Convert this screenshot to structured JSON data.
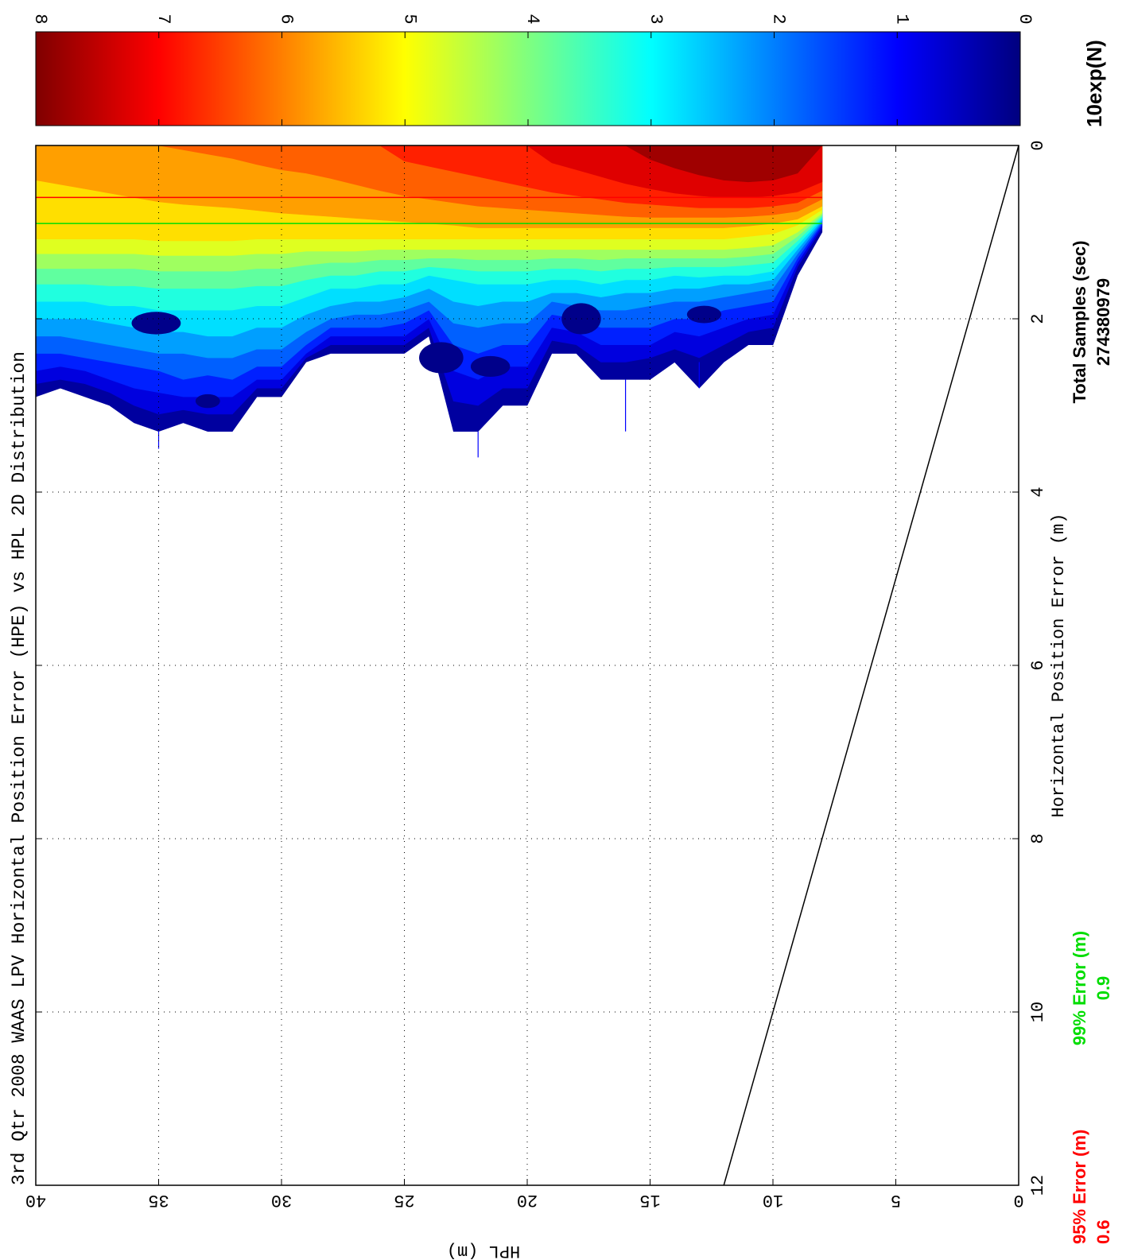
{
  "chart_data": {
    "type": "heatmap",
    "title": "3rd Qtr 2008 WAAS LPV Horizontal Position Error (HPE) vs HPL 2D Distribution",
    "xlabel": "Horizontal Position Error (m)",
    "ylabel": "HPL (m)",
    "xlim": [
      0,
      12
    ],
    "ylim": [
      0,
      40
    ],
    "x_ticks": [
      "0",
      "2",
      "4",
      "6",
      "8",
      "10",
      "12"
    ],
    "y_ticks": [
      "0",
      "5",
      "10",
      "15",
      "20",
      "25",
      "30",
      "35",
      "40"
    ],
    "grid": true,
    "colorbar": {
      "label": "10exp(N)",
      "range": [
        0,
        8
      ],
      "ticks": [
        "0",
        "1",
        "2",
        "3",
        "4",
        "5",
        "6",
        "7",
        "8"
      ]
    },
    "reference_line": {
      "x": [
        0,
        12
      ],
      "y": [
        0,
        12
      ]
    },
    "hpe_95": {
      "label": "95% Error (m)",
      "value": "0.6",
      "color": "#ff0000"
    },
    "hpe_99": {
      "label": "99% Error (m)",
      "value": "0.9",
      "color": "#00dd00"
    },
    "total_samples": {
      "label": "Total Samples (sec)",
      "value": "274380979"
    },
    "hpl_rows": [
      8,
      9,
      10,
      11,
      12,
      13,
      14,
      15,
      16,
      17,
      18,
      19,
      20,
      21,
      22,
      23,
      24,
      25,
      26,
      27,
      28,
      29,
      30,
      31,
      32,
      33,
      34,
      35,
      36,
      37,
      38,
      39,
      40
    ],
    "contour_levels": [
      0,
      0.5,
      1,
      1.5,
      2,
      2.5,
      3,
      3.5,
      4,
      4.5,
      5,
      5.5,
      6,
      6.5,
      7,
      7.5
    ],
    "contours": [
      {
        "level": 0.0,
        "hpe": [
          1.0,
          1.5,
          2.3,
          2.3,
          2.5,
          2.8,
          2.5,
          2.7,
          2.7,
          2.7,
          2.4,
          2.4,
          3.0,
          3.0,
          3.3,
          3.3,
          2.2,
          2.4,
          2.4,
          2.4,
          2.4,
          2.5,
          2.9,
          2.9,
          3.3,
          3.3,
          3.2,
          3.3,
          3.2,
          3.0,
          2.9,
          2.8,
          2.9
        ]
      },
      {
        "level": 0.5,
        "hpe": [
          0.95,
          1.4,
          2.1,
          2.15,
          2.3,
          2.45,
          2.35,
          2.45,
          2.5,
          2.5,
          2.3,
          2.25,
          2.8,
          2.8,
          3.0,
          2.95,
          2.1,
          2.3,
          2.3,
          2.3,
          2.3,
          2.45,
          2.8,
          2.8,
          3.1,
          3.1,
          3.05,
          3.1,
          3.0,
          2.85,
          2.75,
          2.7,
          2.75
        ]
      },
      {
        "level": 1.0,
        "hpe": [
          0.92,
          1.35,
          1.95,
          2.0,
          2.1,
          2.2,
          2.15,
          2.3,
          2.3,
          2.3,
          2.15,
          2.1,
          2.55,
          2.55,
          2.7,
          2.6,
          2.0,
          2.2,
          2.2,
          2.2,
          2.2,
          2.4,
          2.7,
          2.7,
          2.9,
          2.9,
          2.9,
          2.85,
          2.8,
          2.7,
          2.6,
          2.55,
          2.6
        ]
      },
      {
        "level": 1.5,
        "hpe": [
          0.9,
          1.3,
          1.8,
          1.85,
          1.9,
          2.0,
          2.0,
          2.1,
          2.1,
          2.1,
          2.0,
          1.95,
          2.3,
          2.3,
          2.4,
          2.3,
          1.9,
          2.05,
          2.1,
          2.1,
          2.1,
          2.3,
          2.55,
          2.55,
          2.7,
          2.65,
          2.7,
          2.6,
          2.55,
          2.5,
          2.45,
          2.4,
          2.4
        ]
      },
      {
        "level": 2.0,
        "hpe": [
          0.88,
          1.25,
          1.65,
          1.7,
          1.75,
          1.8,
          1.8,
          1.85,
          1.9,
          1.9,
          1.85,
          1.8,
          2.05,
          2.05,
          2.1,
          2.05,
          1.8,
          1.9,
          1.95,
          1.95,
          2.0,
          2.15,
          2.35,
          2.35,
          2.45,
          2.45,
          2.4,
          2.4,
          2.35,
          2.3,
          2.25,
          2.2,
          2.2
        ]
      },
      {
        "level": 2.5,
        "hpe": [
          0.86,
          1.2,
          1.55,
          1.6,
          1.6,
          1.65,
          1.65,
          1.7,
          1.7,
          1.75,
          1.7,
          1.7,
          1.8,
          1.8,
          1.85,
          1.8,
          1.65,
          1.75,
          1.8,
          1.8,
          1.85,
          1.95,
          2.1,
          2.1,
          2.2,
          2.2,
          2.15,
          2.15,
          2.1,
          2.05,
          2.0,
          2.0,
          2.0
        ]
      },
      {
        "level": 3.0,
        "hpe": [
          0.84,
          1.15,
          1.45,
          1.5,
          1.5,
          1.52,
          1.5,
          1.55,
          1.55,
          1.6,
          1.55,
          1.55,
          1.6,
          1.6,
          1.6,
          1.55,
          1.5,
          1.6,
          1.6,
          1.65,
          1.65,
          1.75,
          1.85,
          1.85,
          1.9,
          1.9,
          1.9,
          1.9,
          1.85,
          1.85,
          1.8,
          1.8,
          1.8
        ]
      },
      {
        "level": 3.5,
        "hpe": [
          0.82,
          1.1,
          1.35,
          1.38,
          1.4,
          1.4,
          1.4,
          1.42,
          1.42,
          1.45,
          1.42,
          1.42,
          1.45,
          1.45,
          1.45,
          1.42,
          1.4,
          1.45,
          1.45,
          1.5,
          1.5,
          1.55,
          1.62,
          1.62,
          1.65,
          1.65,
          1.65,
          1.65,
          1.62,
          1.62,
          1.6,
          1.6,
          1.6
        ]
      },
      {
        "level": 4.0,
        "hpe": [
          0.8,
          1.05,
          1.25,
          1.28,
          1.3,
          1.3,
          1.3,
          1.3,
          1.3,
          1.32,
          1.3,
          1.3,
          1.32,
          1.32,
          1.32,
          1.3,
          1.3,
          1.32,
          1.32,
          1.35,
          1.35,
          1.38,
          1.42,
          1.42,
          1.45,
          1.45,
          1.45,
          1.45,
          1.42,
          1.42,
          1.42,
          1.42,
          1.42
        ]
      },
      {
        "level": 4.5,
        "hpe": [
          0.78,
          1.0,
          1.15,
          1.18,
          1.2,
          1.2,
          1.2,
          1.2,
          1.2,
          1.2,
          1.2,
          1.2,
          1.2,
          1.2,
          1.2,
          1.2,
          1.2,
          1.2,
          1.2,
          1.22,
          1.22,
          1.22,
          1.25,
          1.25,
          1.27,
          1.27,
          1.27,
          1.27,
          1.25,
          1.25,
          1.25,
          1.25,
          1.25
        ]
      },
      {
        "level": 5.0,
        "hpe": [
          0.74,
          0.92,
          1.02,
          1.05,
          1.08,
          1.08,
          1.08,
          1.08,
          1.08,
          1.08,
          1.08,
          1.08,
          1.08,
          1.08,
          1.08,
          1.08,
          1.08,
          1.08,
          1.08,
          1.08,
          1.08,
          1.08,
          1.08,
          1.08,
          1.1,
          1.1,
          1.1,
          1.1,
          1.08,
          1.08,
          1.08,
          1.08,
          1.08
        ]
      },
      {
        "level": 5.5,
        "hpe": [
          0.7,
          0.85,
          0.9,
          0.93,
          0.95,
          0.95,
          0.95,
          0.95,
          0.95,
          0.95,
          0.95,
          0.95,
          0.95,
          0.95,
          0.95,
          0.92,
          0.9,
          0.88,
          0.86,
          0.84,
          0.82,
          0.8,
          0.78,
          0.75,
          0.72,
          0.7,
          0.68,
          0.65,
          0.6,
          0.55,
          0.5,
          0.45,
          0.4
        ]
      },
      {
        "level": 6.0,
        "hpe": [
          0.62,
          0.76,
          0.8,
          0.82,
          0.83,
          0.83,
          0.83,
          0.83,
          0.82,
          0.8,
          0.78,
          0.76,
          0.74,
          0.72,
          0.7,
          0.66,
          0.62,
          0.58,
          0.52,
          0.45,
          0.38,
          0.32,
          0.28,
          0.22,
          0.15,
          0.1,
          0.05,
          0,
          0,
          0,
          0,
          0,
          0
        ]
      },
      {
        "level": 6.5,
        "hpe": [
          0.52,
          0.66,
          0.7,
          0.72,
          0.72,
          0.72,
          0.7,
          0.68,
          0.66,
          0.62,
          0.58,
          0.54,
          0.48,
          0.42,
          0.36,
          0.3,
          0.24,
          0.18,
          0,
          0,
          0,
          0,
          0,
          0,
          0,
          0,
          0,
          0,
          0,
          0,
          0,
          0,
          0
        ]
      },
      {
        "level": 7.0,
        "hpe": [
          0.42,
          0.54,
          0.58,
          0.6,
          0.6,
          0.58,
          0.55,
          0.5,
          0.44,
          0.36,
          0.28,
          0.2,
          0,
          0,
          0,
          0,
          0,
          0,
          0,
          0,
          0,
          0,
          0,
          0,
          0,
          0,
          0,
          0,
          0,
          0,
          0,
          0,
          0
        ]
      },
      {
        "level": 7.5,
        "hpe": [
          0,
          0.32,
          0.4,
          0.42,
          0.4,
          0.34,
          0.26,
          0.16,
          0,
          0,
          0,
          0,
          0,
          0,
          0,
          0,
          0,
          0,
          0,
          0,
          0,
          0,
          0,
          0,
          0,
          0,
          0,
          0,
          0,
          0,
          0,
          0,
          0
        ]
      }
    ],
    "dark_patches": [
      {
        "x": 2.05,
        "y": 35.1,
        "rx": 0.13,
        "ry": 1.0
      },
      {
        "x": 2.0,
        "y": 17.8,
        "rx": 0.18,
        "ry": 0.8
      },
      {
        "x": 2.45,
        "y": 23.5,
        "rx": 0.18,
        "ry": 0.9
      },
      {
        "x": 1.95,
        "y": 12.8,
        "rx": 0.1,
        "ry": 0.7
      },
      {
        "x": 2.95,
        "y": 33.0,
        "rx": 0.08,
        "ry": 0.5
      },
      {
        "x": 2.55,
        "y": 21.5,
        "rx": 0.12,
        "ry": 0.8
      }
    ],
    "spikes": [
      {
        "y": 35,
        "hpe": [
          3.3,
          3.5
        ]
      },
      {
        "y": 22,
        "hpe": [
          3.3,
          3.6
        ]
      },
      {
        "y": 16,
        "hpe": [
          2.7,
          3.3
        ]
      },
      {
        "y": 13,
        "hpe": [
          2.5,
          2.8
        ]
      }
    ]
  }
}
